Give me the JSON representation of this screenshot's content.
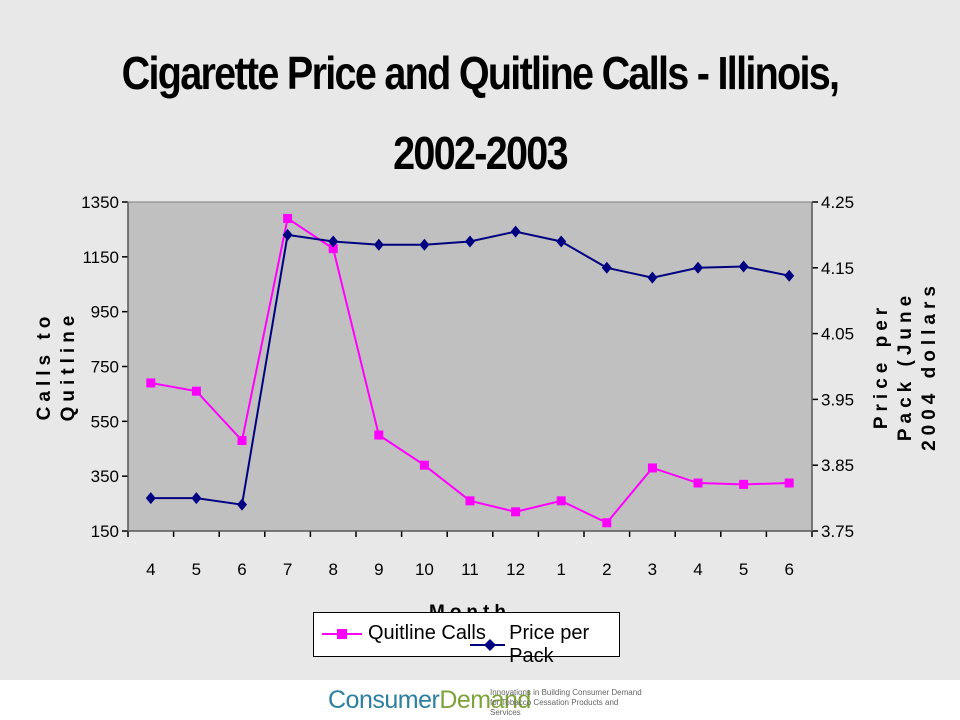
{
  "chart_data": {
    "type": "line",
    "title_line1": "Cigarette Price and Quitline Calls - Illinois,",
    "title_line2": "2002-2003",
    "xlabel": "Month",
    "categories": [
      "4",
      "5",
      "6",
      "7",
      "8",
      "9",
      "10",
      "11",
      "12",
      "1",
      "2",
      "3",
      "4",
      "5",
      "6"
    ],
    "y_left": {
      "label_line1": "Calls to",
      "label_line2": "Quitline",
      "lim": [
        150,
        1350
      ],
      "ticks": [
        "1350",
        "1150",
        "950",
        "750",
        "550",
        "350",
        "150"
      ]
    },
    "y_right": {
      "label_line1": "Price per",
      "label_line2": "Pack (June",
      "label_line3": "2004 dollars",
      "lim": [
        3.75,
        4.25
      ],
      "ticks": [
        "4.25",
        "4.15",
        "4.05",
        "3.95",
        "3.85",
        "3.75"
      ]
    },
    "series": [
      {
        "name": "Quitline Calls",
        "axis": "left",
        "color": "#ff00ff",
        "marker": "square",
        "values": [
          690,
          660,
          480,
          1290,
          1180,
          500,
          390,
          260,
          220,
          260,
          180,
          380,
          325,
          320,
          325
        ]
      },
      {
        "name": "Price per Pack",
        "axis": "right",
        "color": "#000080",
        "marker": "diamond",
        "values": [
          3.8,
          3.8,
          3.79,
          4.2,
          4.19,
          4.185,
          4.185,
          4.19,
          4.205,
          4.19,
          4.15,
          4.135,
          4.15,
          4.152,
          4.138
        ]
      }
    ],
    "grid": false,
    "plot_background": "#c0c0c0",
    "legend": "bottom"
  },
  "footer": {
    "brand_part1": "Consumer",
    "brand_part2": "Demand",
    "tagline_line1": "Innovations in Building Consumer Demand",
    "tagline_line2": "for Tobacco Cessation Products and Services"
  }
}
